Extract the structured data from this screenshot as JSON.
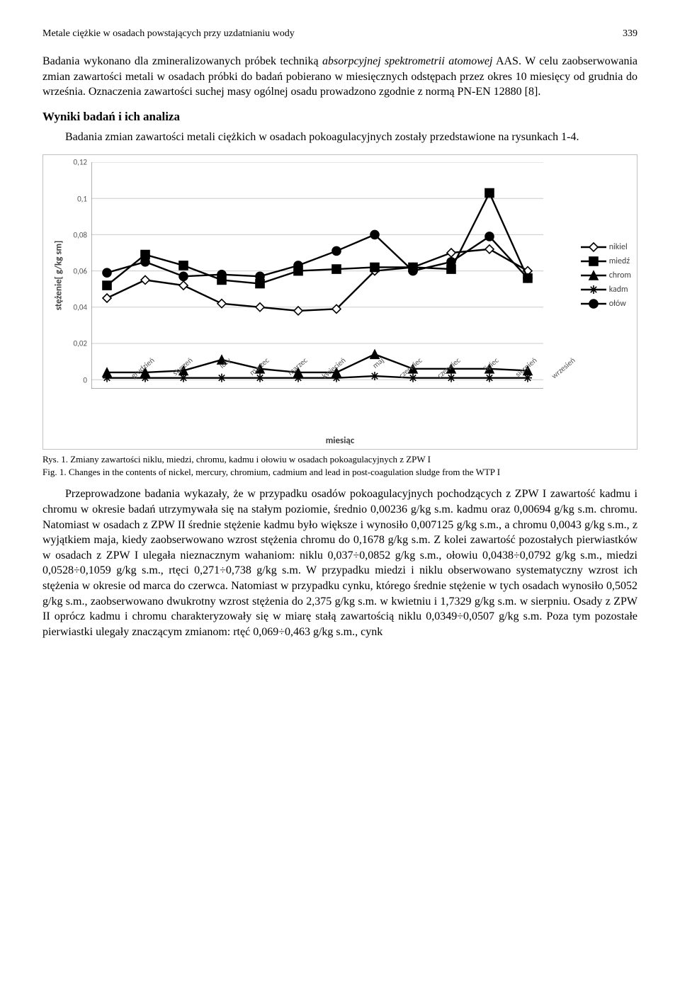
{
  "header": {
    "title": "Metale ciężkie w osadach powstających przy uzdatnianiu wody",
    "page": "339"
  },
  "para1_a": "Badania wykonano dla zmineralizowanych próbek techniką ",
  "para1_b": "absorpcyjnej spektrometrii atomowej",
  "para1_c": " AAS. W celu zaobserwowania zmian zawartości metali w osadach próbki do badań pobierano w miesięcznych odstępach przez okres 10 miesięcy od grudnia do września. Oznaczenia zawartości suchej masy ogólnej osadu prowadzono zgodnie z normą PN-EN 12880 [8].",
  "section_title": "Wyniki badań i ich analiza",
  "para2": "Badania zmian zawartości metali ciężkich w osadach pokoagulacyjnych zostały przedstawione na rysunkach 1-4.",
  "chart": {
    "type": "line",
    "ylabel": "stężenie[ g/kg sm]",
    "xlabel": "miesiąc",
    "ylim": [
      -0.005,
      0.12
    ],
    "yticks": [
      0,
      0.02,
      0.04,
      0.06,
      0.08,
      0.1,
      0.12
    ],
    "gridlines": [
      0,
      0.02,
      0.04,
      0.06,
      0.08,
      0.1,
      0.12
    ],
    "categories": [
      "grudzień",
      "styczeń",
      "luty",
      "marzec",
      "marzec",
      "kwiecień",
      "maj",
      "czerwiec",
      "czerwiec",
      "lipiec",
      "sierpień",
      "wrzesień"
    ],
    "series": [
      {
        "name": "nikiel",
        "marker": "diamond",
        "color": "#000000",
        "fill": "#ffffff",
        "values": [
          0.045,
          0.055,
          0.052,
          0.042,
          0.04,
          0.038,
          0.039,
          0.06,
          0.062,
          0.07,
          0.072,
          0.06
        ]
      },
      {
        "name": "miedź",
        "marker": "square",
        "color": "#000000",
        "fill": "#000000",
        "values": [
          0.052,
          0.069,
          0.063,
          0.055,
          0.053,
          0.06,
          0.061,
          0.062,
          0.062,
          0.061,
          0.103,
          0.056
        ]
      },
      {
        "name": "chrom",
        "marker": "triangle",
        "color": "#000000",
        "fill": "#000000",
        "values": [
          0.004,
          0.004,
          0.005,
          0.011,
          0.006,
          0.004,
          0.004,
          0.014,
          0.006,
          0.006,
          0.006,
          0.005
        ]
      },
      {
        "name": "kadm",
        "marker": "asterisk",
        "color": "#000000",
        "fill": "none",
        "values": [
          0.001,
          0.001,
          0.001,
          0.001,
          0.001,
          0.001,
          0.001,
          0.002,
          0.001,
          0.001,
          0.001,
          0.001
        ]
      },
      {
        "name": "ołów",
        "marker": "circle",
        "color": "#000000",
        "fill": "#000000",
        "values": [
          0.059,
          0.065,
          0.057,
          0.058,
          0.057,
          0.063,
          0.071,
          0.08,
          0.06,
          0.065,
          0.079,
          0.056
        ]
      }
    ],
    "line_width": 2.4,
    "marker_size": 6,
    "axis_fontsize": 11,
    "label_fontsize": 13,
    "label_weight": "bold",
    "background_color": "#ffffff",
    "grid_color": "#cccccc",
    "axis_color": "#808080"
  },
  "caption_pl_label": "Rys. 1.",
  "caption_pl": " Zmiany zawartości niklu, miedzi, chromu, kadmu i ołowiu w osadach pokoagulacyjnych z ZPW I",
  "caption_en_label": "Fig. 1.",
  "caption_en": " Changes in the contents of nickel, mercury, chromium, cadmium and lead in post-coagulation sludge from the WTP I",
  "para3": "Przeprowadzone badania wykazały, że w przypadku osadów pokoagulacyjnych pochodzących z ZPW I zawartość kadmu i chromu w okresie badań utrzymywała się na stałym poziomie, średnio 0,00236 g/kg s.m. kadmu oraz 0,00694 g/kg s.m. chromu. Natomiast w osadach z ZPW II średnie stężenie kadmu było większe i wynosiło 0,007125 g/kg s.m., a chromu 0,0043 g/kg s.m., z wyjątkiem maja, kiedy zaobserwowano wzrost stężenia chromu do 0,1678 g/kg s.m. Z kolei zawartość pozostałych pierwiastków w osadach z ZPW I ulegała nieznacznym wahaniom: niklu 0,037÷0,0852 g/kg s.m., ołowiu 0,0438÷0,0792 g/kg s.m., miedzi 0,0528÷0,1059 g/kg s.m., rtęci 0,271÷0,738 g/kg s.m. W przypadku miedzi i niklu obserwowano systematyczny wzrost ich stężenia w okresie od marca do czerwca. Natomiast w przypadku cynku, którego średnie stężenie w tych osadach wynosiło 0,5052 g/kg s.m., zaobserwowano dwukrotny wzrost stężenia do 2,375 g/kg s.m. w kwietniu i 1,7329 g/kg s.m. w sierpniu. Osady z ZPW II oprócz kadmu i chromu charakteryzowały się w miarę stałą zawartością niklu 0,0349÷0,0507 g/kg s.m. Poza tym pozostałe pierwiastki ulegały znaczącym zmianom: rtęć 0,069÷0,463 g/kg s.m., cynk"
}
